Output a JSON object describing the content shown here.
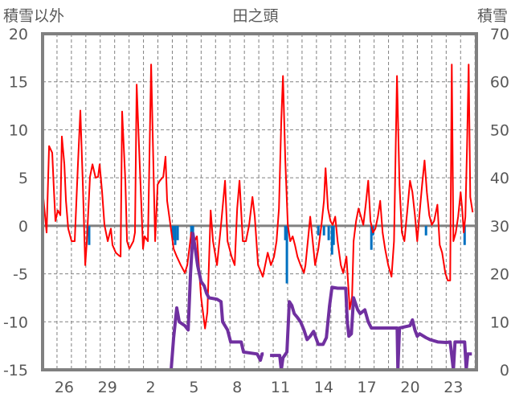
{
  "chart_data": {
    "type": "line",
    "title": "田之頭",
    "left_axis_label": "積雪以外",
    "right_axis_label": "積雪",
    "ylim_left": [
      -15,
      20
    ],
    "yticks_left": [
      -15,
      -10,
      -5,
      0,
      5,
      10,
      15,
      20
    ],
    "ylim_right": [
      0,
      70
    ],
    "yticks_right": [
      0,
      10,
      20,
      30,
      40,
      50,
      60,
      70
    ],
    "x_unit": "days since Nov 25 00:00",
    "xlim": [
      0,
      30.1
    ],
    "xtick_labels": [
      {
        "day": 1.5,
        "label": "26"
      },
      {
        "day": 4.5,
        "label": "29"
      },
      {
        "day": 7.5,
        "label": "2"
      },
      {
        "day": 10.5,
        "label": "5"
      },
      {
        "day": 13.5,
        "label": "8"
      },
      {
        "day": 16.5,
        "label": "11"
      },
      {
        "day": 19.5,
        "label": "14"
      },
      {
        "day": 22.5,
        "label": "17"
      },
      {
        "day": 25.5,
        "label": "20"
      },
      {
        "day": 28.5,
        "label": "23"
      }
    ],
    "grid": true,
    "colors": {
      "temperature": "#ff0000",
      "precipitation": "#0070c0",
      "snow_depth": "#7030a0",
      "grid": "#808080",
      "frame": "#808080"
    },
    "series": [
      {
        "name": "temperature",
        "axis": "left",
        "points": [
          [
            0.06,
            2.8
          ],
          [
            0.28,
            -0.7
          ],
          [
            0.45,
            8.3
          ],
          [
            0.67,
            7.6
          ],
          [
            0.78,
            3.9
          ],
          [
            0.89,
            0.5
          ],
          [
            1.06,
            1.6
          ],
          [
            1.23,
            1.1
          ],
          [
            1.34,
            9.3
          ],
          [
            1.51,
            6.4
          ],
          [
            1.62,
            2.6
          ],
          [
            1.78,
            -0.3
          ],
          [
            2.01,
            -1.6
          ],
          [
            2.23,
            -1.6
          ],
          [
            2.45,
            6.4
          ],
          [
            2.62,
            12.0
          ],
          [
            2.79,
            4.3
          ],
          [
            2.96,
            -4.1
          ],
          [
            3.07,
            -1.6
          ],
          [
            3.29,
            5.1
          ],
          [
            3.46,
            6.4
          ],
          [
            3.68,
            5.0
          ],
          [
            3.85,
            5.1
          ],
          [
            3.96,
            6.4
          ],
          [
            4.13,
            3.5
          ],
          [
            4.29,
            0.1
          ],
          [
            4.52,
            -1.6
          ],
          [
            4.74,
            -0.3
          ],
          [
            4.85,
            -2.0
          ],
          [
            5.08,
            -2.8
          ],
          [
            5.3,
            -3.1
          ],
          [
            5.41,
            -3.2
          ],
          [
            5.52,
            11.9
          ],
          [
            5.74,
            4.7
          ],
          [
            5.86,
            -1.6
          ],
          [
            6.02,
            -2.4
          ],
          [
            6.3,
            -1.6
          ],
          [
            6.41,
            -0.7
          ],
          [
            6.53,
            14.7
          ],
          [
            6.69,
            8.3
          ],
          [
            6.86,
            1.8
          ],
          [
            6.97,
            -2.4
          ],
          [
            7.08,
            -1.1
          ],
          [
            7.31,
            -1.6
          ],
          [
            7.53,
            16.8
          ],
          [
            7.64,
            9.3
          ],
          [
            7.81,
            -1.6
          ],
          [
            7.98,
            4.3
          ],
          [
            8.14,
            4.7
          ],
          [
            8.37,
            5.1
          ],
          [
            8.53,
            7.2
          ],
          [
            8.64,
            2.6
          ],
          [
            8.87,
            0.1
          ],
          [
            9.09,
            -2.4
          ],
          [
            9.31,
            -3.2
          ],
          [
            9.59,
            -4.1
          ],
          [
            9.87,
            -4.9
          ],
          [
            10.04,
            -4.1
          ],
          [
            10.32,
            -0.7
          ],
          [
            10.54,
            -1.6
          ],
          [
            10.71,
            -1.1
          ],
          [
            10.99,
            -7.4
          ],
          [
            11.27,
            -10.7
          ],
          [
            11.43,
            -9.0
          ],
          [
            11.66,
            1.6
          ],
          [
            11.82,
            -1.6
          ],
          [
            12.1,
            -4.1
          ],
          [
            12.38,
            0.1
          ],
          [
            12.66,
            4.7
          ],
          [
            12.83,
            -1.6
          ],
          [
            13.11,
            -3.2
          ],
          [
            13.33,
            -4.1
          ],
          [
            13.5,
            1.8
          ],
          [
            13.66,
            4.7
          ],
          [
            13.89,
            -1.6
          ],
          [
            14.11,
            -1.6
          ],
          [
            14.33,
            0.1
          ],
          [
            14.56,
            3.0
          ],
          [
            14.72,
            0.95
          ],
          [
            14.95,
            -4.1
          ],
          [
            15.17,
            -4.9
          ],
          [
            15.28,
            -5.3
          ],
          [
            15.62,
            -2.8
          ],
          [
            15.84,
            -4.1
          ],
          [
            16.06,
            -3.2
          ],
          [
            16.23,
            -1.6
          ],
          [
            16.4,
            1.8
          ],
          [
            16.56,
            11.0
          ],
          [
            16.68,
            15.6
          ],
          [
            16.84,
            6.8
          ],
          [
            17.01,
            0.1
          ],
          [
            17.18,
            -1.6
          ],
          [
            17.35,
            -1.1
          ],
          [
            17.51,
            -2.0
          ],
          [
            17.68,
            -3.2
          ],
          [
            17.9,
            -4.1
          ],
          [
            18.13,
            -4.9
          ],
          [
            18.24,
            -4.1
          ],
          [
            18.46,
            -0.7
          ],
          [
            18.57,
            0.95
          ],
          [
            18.74,
            -1.6
          ],
          [
            18.91,
            -4.1
          ],
          [
            19.13,
            -2.4
          ],
          [
            19.35,
            0.1
          ],
          [
            19.52,
            2.6
          ],
          [
            19.63,
            6.0
          ],
          [
            19.8,
            1.8
          ],
          [
            19.97,
            0.5
          ],
          [
            20.13,
            0.1
          ],
          [
            20.3,
            0.95
          ],
          [
            20.47,
            -1.6
          ],
          [
            20.69,
            -4.1
          ],
          [
            20.86,
            -4.9
          ],
          [
            21.08,
            -3.2
          ],
          [
            21.31,
            -8.7
          ],
          [
            21.47,
            -7.4
          ],
          [
            21.58,
            -1.6
          ],
          [
            21.75,
            0.5
          ],
          [
            21.92,
            1.8
          ],
          [
            22.09,
            0.95
          ],
          [
            22.25,
            0.1
          ],
          [
            22.42,
            2.2
          ],
          [
            22.59,
            4.7
          ],
          [
            22.75,
            0.5
          ],
          [
            22.92,
            -0.7
          ],
          [
            23.09,
            -0.3
          ],
          [
            23.26,
            0.95
          ],
          [
            23.42,
            2.6
          ],
          [
            23.59,
            -0.7
          ],
          [
            23.76,
            -2.4
          ],
          [
            23.98,
            -4.1
          ],
          [
            24.21,
            -5.3
          ],
          [
            24.38,
            -1.6
          ],
          [
            24.59,
            15.6
          ],
          [
            24.76,
            4.3
          ],
          [
            24.93,
            -0.7
          ],
          [
            25.1,
            -1.6
          ],
          [
            25.32,
            1.8
          ],
          [
            25.49,
            4.7
          ],
          [
            25.66,
            3.5
          ],
          [
            25.83,
            1.1
          ],
          [
            25.99,
            -1.6
          ],
          [
            26.16,
            1.4
          ],
          [
            26.33,
            4.3
          ],
          [
            26.5,
            6.8
          ],
          [
            26.66,
            3.5
          ],
          [
            26.83,
            1.1
          ],
          [
            27.0,
            0.1
          ],
          [
            27.16,
            0.5
          ],
          [
            27.39,
            2.2
          ],
          [
            27.55,
            -2.0
          ],
          [
            27.72,
            -2.8
          ],
          [
            27.94,
            -4.9
          ],
          [
            28.11,
            -5.7
          ],
          [
            28.28,
            -5.7
          ],
          [
            28.39,
            16.8
          ],
          [
            28.5,
            -1.6
          ],
          [
            28.67,
            -0.7
          ],
          [
            28.83,
            0.95
          ],
          [
            29.0,
            3.5
          ],
          [
            29.11,
            1.8
          ],
          [
            29.22,
            -0.7
          ],
          [
            29.33,
            0.95
          ],
          [
            29.45,
            8.3
          ],
          [
            29.56,
            16.8
          ],
          [
            29.67,
            3.0
          ],
          [
            29.84,
            1.4
          ]
        ]
      },
      {
        "name": "precipitation",
        "axis": "left",
        "type": "bar",
        "points": [
          [
            3.12,
            -1
          ],
          [
            3.23,
            -2
          ],
          [
            9.04,
            -1.5
          ],
          [
            9.2,
            -2
          ],
          [
            9.37,
            -1.5
          ],
          [
            10.32,
            -1.5
          ],
          [
            10.43,
            -2
          ],
          [
            16.84,
            -1.5
          ],
          [
            16.95,
            -6
          ],
          [
            19.13,
            -1
          ],
          [
            19.52,
            -1
          ],
          [
            19.85,
            -1.5
          ],
          [
            20.08,
            -3
          ],
          [
            20.19,
            -2
          ],
          [
            22.81,
            -2.5
          ],
          [
            22.92,
            -1
          ],
          [
            26.6,
            -1
          ],
          [
            29.28,
            -2
          ]
        ]
      },
      {
        "name": "snow_depth",
        "axis": "right",
        "points": [
          [
            0,
            0
          ],
          [
            8.92,
            0
          ],
          [
            9.09,
            6.7
          ],
          [
            9.31,
            12.9
          ],
          [
            9.48,
            10
          ],
          [
            9.87,
            9.2
          ],
          [
            10.1,
            8.3
          ],
          [
            10.26,
            20
          ],
          [
            10.43,
            28.4
          ],
          [
            10.6,
            25
          ],
          [
            10.76,
            21.7
          ],
          [
            10.99,
            18.4
          ],
          [
            11.21,
            17.5
          ],
          [
            11.38,
            15.9
          ],
          [
            11.54,
            15
          ],
          [
            12.1,
            14.7
          ],
          [
            12.38,
            14.2
          ],
          [
            12.49,
            10
          ],
          [
            12.83,
            8.3
          ],
          [
            13.05,
            5.8
          ],
          [
            13.78,
            5.8
          ],
          [
            13.94,
            3.7
          ],
          [
            14.89,
            3.3
          ],
          [
            15.11,
            2
          ],
          [
            15.23,
            3.3
          ],
          [
            15.34,
            3.3
          ],
          null,
          [
            15.78,
            3
          ],
          [
            16.45,
            3
          ],
          [
            16.56,
            0
          ],
          [
            16.68,
            2.5
          ],
          [
            16.95,
            3.7
          ],
          [
            17.12,
            14.2
          ],
          [
            17.29,
            13.4
          ],
          [
            17.46,
            11.7
          ],
          [
            17.68,
            10.9
          ],
          [
            17.9,
            10
          ],
          [
            18.13,
            8.3
          ],
          [
            18.35,
            6.3
          ],
          [
            18.57,
            7
          ],
          [
            18.8,
            8
          ],
          [
            18.96,
            6.7
          ],
          [
            19.13,
            5.3
          ],
          [
            19.46,
            5.3
          ],
          [
            19.69,
            6.7
          ],
          [
            19.91,
            13.4
          ],
          [
            20.08,
            17.2
          ],
          [
            20.47,
            17
          ],
          [
            21.03,
            17
          ],
          [
            21.14,
            10
          ],
          [
            21.25,
            7
          ],
          [
            21.42,
            7.5
          ],
          [
            21.58,
            15
          ],
          [
            21.86,
            12.5
          ],
          [
            22.03,
            11.7
          ],
          [
            22.36,
            12.5
          ],
          [
            22.59,
            10
          ],
          [
            22.81,
            8.7
          ],
          [
            23.26,
            8.7
          ],
          [
            24.6,
            8.7
          ],
          [
            24.65,
            0
          ],
          [
            24.76,
            8.7
          ],
          [
            25.49,
            9.2
          ],
          [
            25.66,
            10.4
          ],
          [
            25.83,
            8.3
          ],
          [
            25.99,
            7
          ],
          [
            26.16,
            7.5
          ],
          [
            26.6,
            6.7
          ],
          [
            26.88,
            6.3
          ],
          [
            27.44,
            5.8
          ],
          [
            28.0,
            5.7
          ],
          [
            28.28,
            5.8
          ],
          [
            28.5,
            0
          ],
          [
            28.61,
            5.8
          ],
          [
            29.28,
            5.8
          ],
          [
            29.39,
            0
          ],
          [
            29.5,
            3.3
          ],
          [
            29.78,
            3.3
          ]
        ]
      }
    ]
  }
}
